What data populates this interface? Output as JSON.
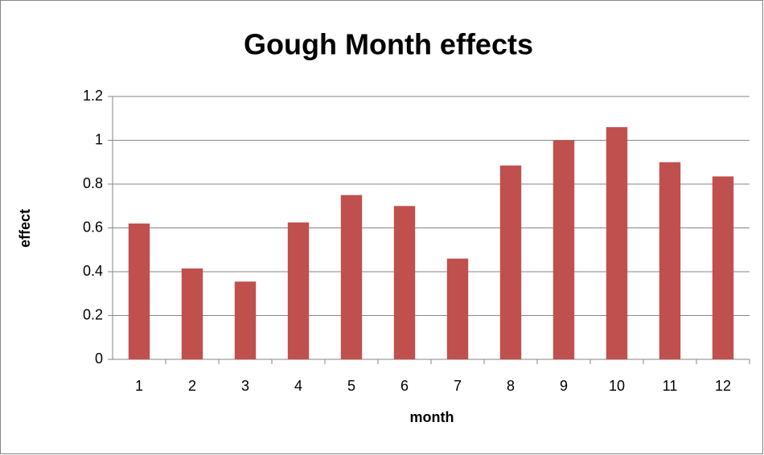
{
  "chart_data": {
    "type": "bar",
    "title": "Gough Month effects",
    "x_label": "month",
    "y_label": "effect",
    "categories": [
      "1",
      "2",
      "3",
      "4",
      "5",
      "6",
      "7",
      "8",
      "9",
      "10",
      "11",
      "12"
    ],
    "values": [
      0.62,
      0.415,
      0.355,
      0.625,
      0.75,
      0.7,
      0.46,
      0.885,
      1.0,
      1.06,
      0.9,
      0.835
    ],
    "color": "#c0504d",
    "ylim": [
      0,
      1.2
    ],
    "yticks": [
      0,
      0.2,
      0.4,
      0.6,
      0.8,
      1,
      1.2
    ],
    "grid": true
  }
}
